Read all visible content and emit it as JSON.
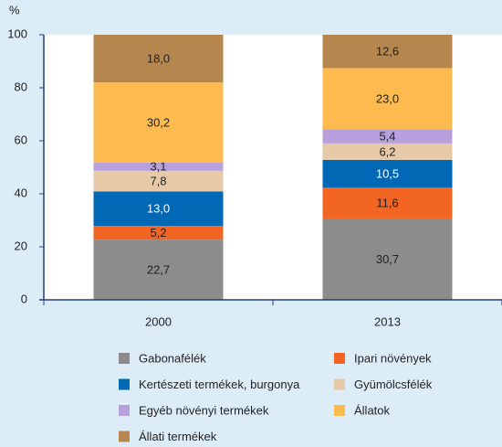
{
  "chart_data": {
    "type": "stacked_bar",
    "y_label": "%",
    "categories": [
      "2000",
      "2013"
    ],
    "ylim": [
      0,
      100
    ],
    "yticks": [
      0,
      20,
      40,
      60,
      80,
      100
    ],
    "series": [
      {
        "name": "Gabonafélék",
        "color": "#8c8c8c",
        "values": [
          22.7,
          30.7
        ],
        "value_labels": [
          "22,7",
          "30,7"
        ]
      },
      {
        "name": "Ipari növények",
        "color": "#f26522",
        "values": [
          5.2,
          11.6
        ],
        "value_labels": [
          "5,2",
          "11,6"
        ]
      },
      {
        "name": "Kertészeti termékek, burgonya",
        "color": "#0068b4",
        "values": [
          13.0,
          10.5
        ],
        "value_labels": [
          "13,0",
          "10,5"
        ]
      },
      {
        "name": "Gyümölcsfélék",
        "color": "#e6caa8",
        "values": [
          7.8,
          6.2
        ],
        "value_labels": [
          "7,8",
          "6,2"
        ]
      },
      {
        "name": "Egyéb növényi termékek",
        "color": "#b7a0dc",
        "values": [
          3.1,
          5.4
        ],
        "value_labels": [
          "3,1",
          "5,4"
        ]
      },
      {
        "name": "Állatok",
        "color": "#fdba4f",
        "values": [
          30.2,
          23.0
        ],
        "value_labels": [
          "30,2",
          "23,0"
        ]
      },
      {
        "name": "Állati termékek",
        "color": "#b5874f",
        "values": [
          18.0,
          12.6
        ],
        "value_labels": [
          "18,0",
          "12,6"
        ]
      }
    ]
  }
}
